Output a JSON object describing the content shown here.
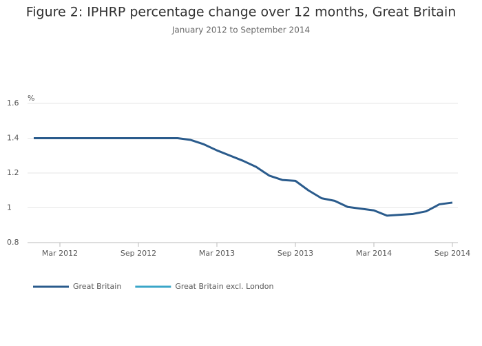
{
  "chart_data": {
    "type": "line",
    "title": "Figure 2: IPHRP percentage change over 12 months, Great Britain",
    "subtitle": "January 2012 to September 2014",
    "y_label": "%",
    "x": [
      "2012-01",
      "2012-02",
      "2012-03",
      "2012-04",
      "2012-05",
      "2012-06",
      "2012-07",
      "2012-08",
      "2012-09",
      "2012-10",
      "2012-11",
      "2012-12",
      "2013-01",
      "2013-02",
      "2013-03",
      "2013-04",
      "2013-05",
      "2013-06",
      "2013-07",
      "2013-08",
      "2013-09",
      "2013-10",
      "2013-11",
      "2013-12",
      "2014-01",
      "2014-02",
      "2014-03",
      "2014-04",
      "2014-05",
      "2014-06",
      "2014-07",
      "2014-08",
      "2014-09"
    ],
    "series": [
      {
        "name": "Great Britain",
        "color": "#2a5b8c",
        "values": [
          1.4,
          1.4,
          1.4,
          1.4,
          1.4,
          1.4,
          1.4,
          1.4,
          1.4,
          1.4,
          1.4,
          1.4,
          1.39,
          1.365,
          1.33,
          1.3,
          1.27,
          1.235,
          1.185,
          1.16,
          1.155,
          1.1,
          1.055,
          1.04,
          1.005,
          0.995,
          0.985,
          0.955,
          0.96,
          0.965,
          0.98,
          1.02,
          1.03
        ]
      },
      {
        "name": "Great Britain excl. London",
        "color": "#3aa6c8",
        "values": [
          null,
          null,
          null,
          null,
          null,
          null,
          null,
          null,
          null,
          null,
          null,
          null,
          null,
          null,
          null,
          null,
          null,
          null,
          null,
          null,
          null,
          null,
          null,
          null,
          null,
          null,
          null,
          null,
          null,
          null,
          null,
          null,
          null
        ]
      }
    ],
    "xticks": [
      {
        "value": "2012-03",
        "label": "Mar 2012"
      },
      {
        "value": "2012-09",
        "label": "Sep 2012"
      },
      {
        "value": "2013-03",
        "label": "Mar 2013"
      },
      {
        "value": "2013-09",
        "label": "Sep 2013"
      },
      {
        "value": "2014-03",
        "label": "Mar 2014"
      },
      {
        "value": "2014-09",
        "label": "Sep 2014"
      }
    ],
    "ylim": [
      0.8,
      1.6
    ],
    "yticks": [
      0.8,
      1,
      1.2,
      1.4,
      1.6
    ],
    "grid": true,
    "legend": "bottom"
  }
}
